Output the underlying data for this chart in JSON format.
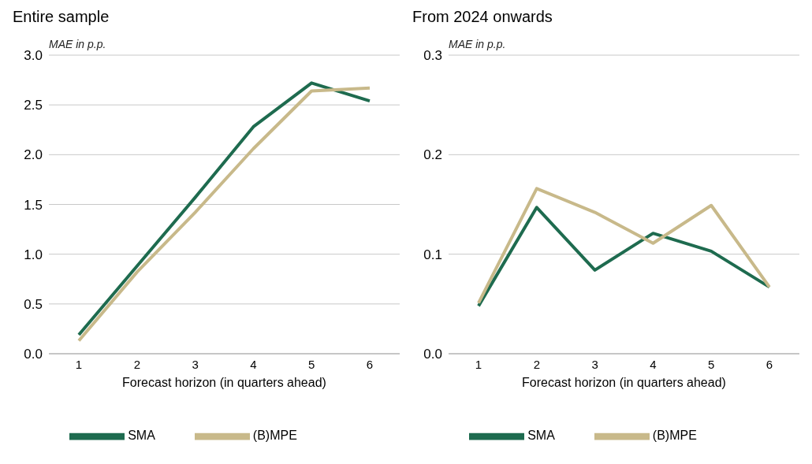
{
  "chart_data": [
    {
      "type": "line",
      "title": "Entire sample",
      "ylabel": "MAE in p.p.",
      "xlabel": "Forecast horizon (in quarters ahead)",
      "categories": [
        "1",
        "2",
        "3",
        "4",
        "5",
        "6"
      ],
      "ylim": [
        0,
        3
      ],
      "yticks": [
        {
          "value": 0,
          "label": "0.0"
        },
        {
          "value": 0.5,
          "label": "0.5"
        },
        {
          "value": 1,
          "label": "1.0"
        },
        {
          "value": 1.5,
          "label": "1.5"
        },
        {
          "value": 2,
          "label": "2.0"
        },
        {
          "value": 2.5,
          "label": "2.5"
        },
        {
          "value": 3,
          "label": "3.0"
        }
      ],
      "grid": "y",
      "legend": "bottom",
      "marker": "none",
      "series": [
        {
          "name": "SMA",
          "color": "#1e6b4f",
          "values": [
            0.19,
            0.88,
            1.57,
            2.28,
            2.72,
            2.54
          ]
        },
        {
          "name": "(B)MPE",
          "color": "#c8b98a",
          "values": [
            0.13,
            0.82,
            1.42,
            2.06,
            2.64,
            2.67
          ]
        }
      ]
    },
    {
      "type": "line",
      "title": "From 2024 onwards",
      "ylabel": "MAE in p.p.",
      "xlabel": "Forecast horizon (in quarters ahead)",
      "categories": [
        "1",
        "2",
        "3",
        "4",
        "5",
        "6"
      ],
      "ylim": [
        0,
        0.3
      ],
      "yticks": [
        {
          "value": 0,
          "label": "0.0"
        },
        {
          "value": 0.1,
          "label": "0.1"
        },
        {
          "value": 0.2,
          "label": "0.2"
        },
        {
          "value": 0.3,
          "label": "0.3"
        }
      ],
      "grid": "y",
      "legend": "bottom",
      "marker": "none",
      "series": [
        {
          "name": "SMA",
          "color": "#1e6b4f",
          "values": [
            0.048,
            0.147,
            0.084,
            0.121,
            0.103,
            0.067
          ]
        },
        {
          "name": "(B)MPE",
          "color": "#c8b98a",
          "values": [
            0.051,
            0.166,
            0.142,
            0.111,
            0.149,
            0.067
          ]
        }
      ]
    }
  ]
}
